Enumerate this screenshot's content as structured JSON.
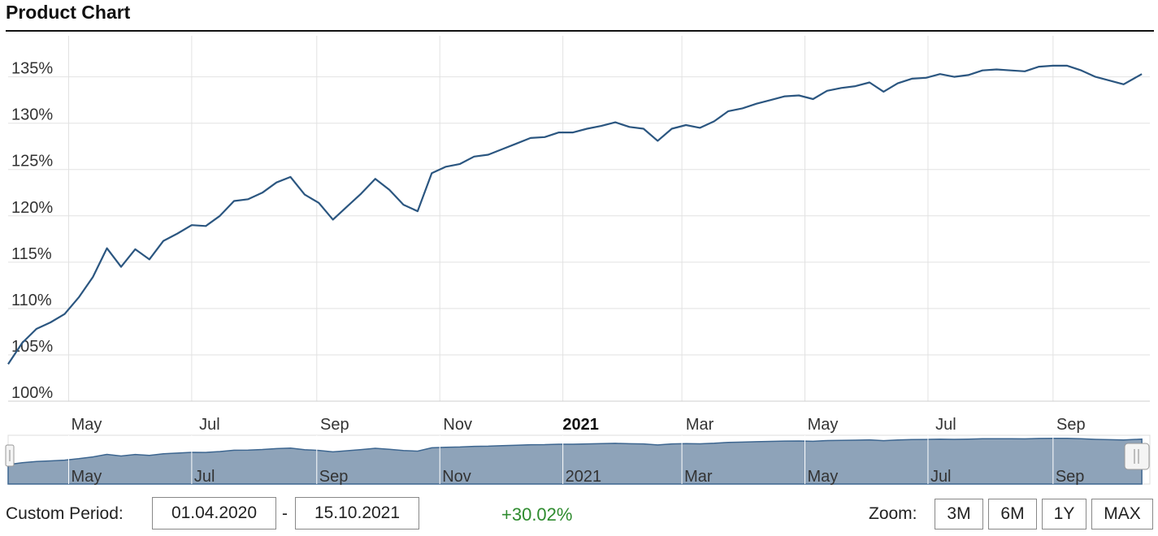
{
  "header": {
    "title": "Product Chart"
  },
  "chart_data": {
    "type": "line",
    "series": [
      {
        "x": [
          "2020-04-01",
          "2020-04-08",
          "2020-04-15",
          "2020-04-22",
          "2020-04-29",
          "2020-05-06",
          "2020-05-13",
          "2020-05-20",
          "2020-05-27",
          "2020-06-03",
          "2020-06-10",
          "2020-06-17",
          "2020-06-24",
          "2020-07-01",
          "2020-07-08",
          "2020-07-15",
          "2020-07-22",
          "2020-07-29",
          "2020-08-05",
          "2020-08-12",
          "2020-08-19",
          "2020-08-26",
          "2020-09-02",
          "2020-09-09",
          "2020-09-16",
          "2020-09-23",
          "2020-09-30",
          "2020-10-07",
          "2020-10-14",
          "2020-10-21",
          "2020-10-28",
          "2020-11-04",
          "2020-11-11",
          "2020-11-18",
          "2020-11-25",
          "2020-12-02",
          "2020-12-09",
          "2020-12-16",
          "2020-12-23",
          "2020-12-30",
          "2021-01-06",
          "2021-01-13",
          "2021-01-20",
          "2021-01-27",
          "2021-02-03",
          "2021-02-10",
          "2021-02-17",
          "2021-02-24",
          "2021-03-03",
          "2021-03-10",
          "2021-03-17",
          "2021-03-24",
          "2021-03-31",
          "2021-04-07",
          "2021-04-14",
          "2021-04-21",
          "2021-04-28",
          "2021-05-05",
          "2021-05-12",
          "2021-05-19",
          "2021-05-26",
          "2021-06-02",
          "2021-06-09",
          "2021-06-16",
          "2021-06-23",
          "2021-06-30",
          "2021-07-07",
          "2021-07-14",
          "2021-07-21",
          "2021-07-28",
          "2021-08-04",
          "2021-08-11",
          "2021-08-18",
          "2021-08-25",
          "2021-09-01",
          "2021-09-08",
          "2021-09-15",
          "2021-09-22",
          "2021-09-29",
          "2021-10-06",
          "2021-10-15"
        ],
        "values": [
          104.0,
          106.3,
          107.8,
          108.5,
          109.4,
          111.2,
          113.4,
          116.5,
          114.5,
          116.4,
          115.3,
          117.3,
          118.1,
          119.0,
          118.9,
          120.0,
          121.6,
          121.8,
          122.5,
          123.6,
          124.2,
          122.3,
          121.4,
          119.6,
          121.0,
          122.4,
          124.0,
          122.8,
          121.2,
          120.5,
          124.6,
          125.3,
          125.6,
          126.4,
          126.6,
          127.2,
          127.8,
          128.4,
          128.5,
          129.0,
          129.0,
          129.4,
          129.7,
          130.1,
          129.6,
          129.4,
          128.1,
          129.4,
          129.8,
          129.5,
          130.2,
          131.3,
          131.6,
          132.1,
          132.5,
          132.9,
          133.0,
          132.6,
          133.5,
          133.8,
          134.0,
          134.4,
          133.4,
          134.3,
          134.8,
          134.9,
          135.3,
          135.0,
          135.2,
          135.7,
          135.8,
          135.7,
          135.6,
          136.1,
          136.2,
          136.2,
          135.7,
          135.0,
          134.6,
          134.2,
          135.3
        ]
      }
    ],
    "ylim": [
      100,
      139
    ],
    "xlim": [
      "2020-04-01",
      "2021-10-19"
    ],
    "y_ticks": [
      "100%",
      "105%",
      "110%",
      "115%",
      "120%",
      "125%",
      "130%",
      "135%"
    ],
    "x_ticks": [
      "May",
      "Jul",
      "Sep",
      "Nov",
      "2021",
      "Mar",
      "May",
      "Jul",
      "Sep"
    ],
    "navigator_ticks": [
      "May",
      "Jul",
      "Sep",
      "Nov",
      "2021",
      "Mar",
      "May",
      "Jul",
      "Sep"
    ],
    "grid": true,
    "legend": "none",
    "line_color": "#2b5680",
    "navigator_fill": "#8ea3b9"
  },
  "footer": {
    "custom_period_label": "Custom Period:",
    "start_date": "01.04.2020",
    "separator": "-",
    "end_date": "15.10.2021",
    "performance": "+30.02%",
    "zoom_label": "Zoom:",
    "zoom_options": [
      "3M",
      "6M",
      "1Y",
      "MAX"
    ]
  }
}
